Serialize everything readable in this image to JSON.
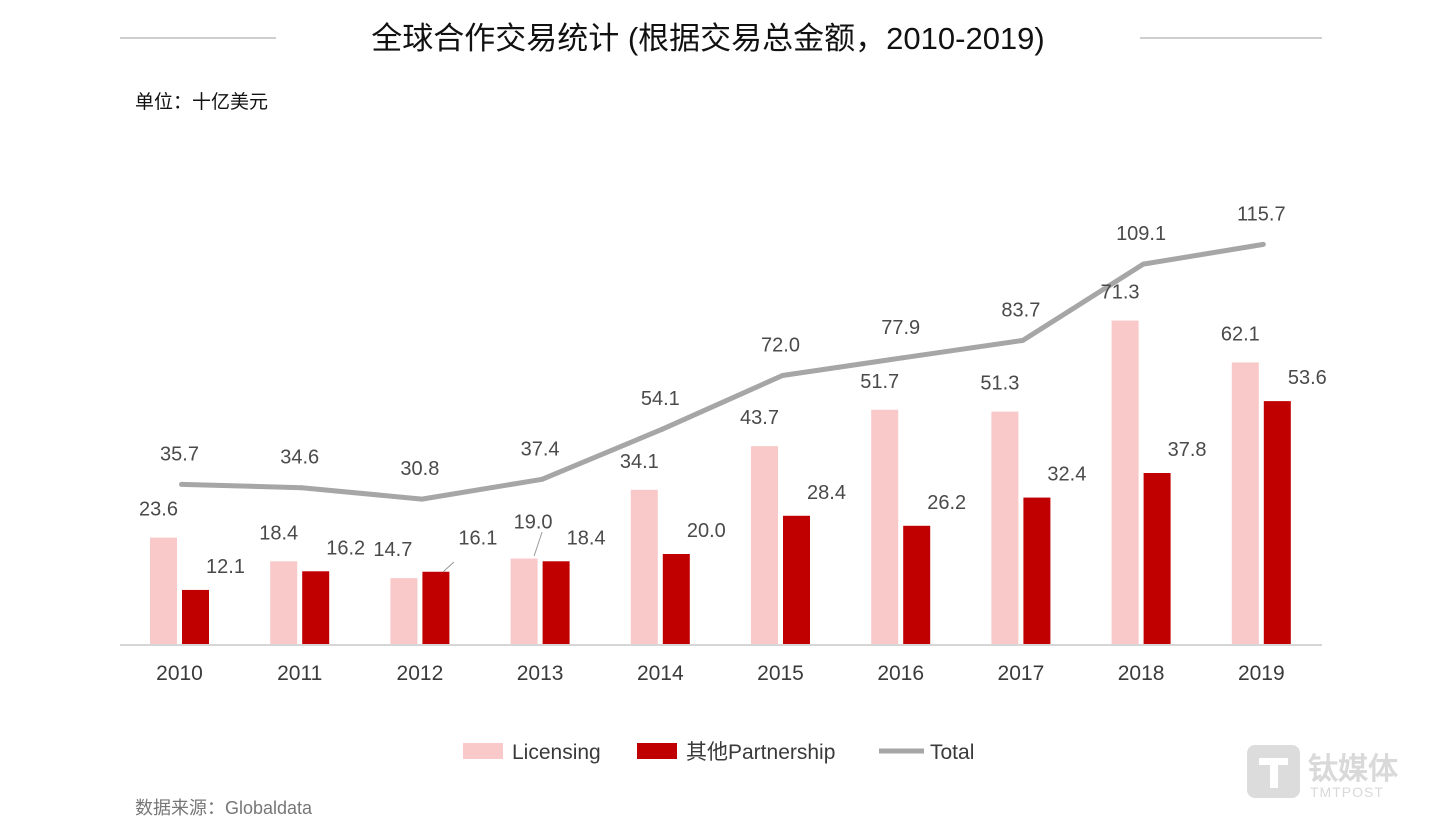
{
  "chart_data": {
    "type": "bar",
    "title": "全球合作交易统计 (根据交易总金额，2010-2019)",
    "unit_label": "单位：十亿美元",
    "categories": [
      "2010",
      "2011",
      "2012",
      "2013",
      "2014",
      "2015",
      "2016",
      "2017",
      "2018",
      "2019"
    ],
    "series": [
      {
        "name": "Licensing",
        "kind": "bar",
        "color": "#f9c9c9",
        "values": [
          23.6,
          18.4,
          14.7,
          19.0,
          34.1,
          43.7,
          51.7,
          51.3,
          71.3,
          62.1
        ],
        "labels": [
          "23.6",
          "18.4",
          "14.7",
          "19.0",
          "34.1",
          "43.7",
          "51.7",
          "51.3",
          "71.3",
          "62.1"
        ]
      },
      {
        "name": "其他Partnership",
        "kind": "bar",
        "color": "#c00000",
        "values": [
          12.1,
          16.2,
          16.1,
          18.4,
          20.0,
          28.4,
          26.2,
          32.4,
          37.8,
          53.6
        ],
        "labels": [
          "12.1",
          "16.2",
          "16.1",
          "18.4",
          "20.0",
          "28.4",
          "26.2",
          "32.4",
          "37.8",
          "53.6"
        ]
      },
      {
        "name": "Total",
        "kind": "line",
        "color": "#a6a6a6",
        "values": [
          35.7,
          34.6,
          30.8,
          37.4,
          54.1,
          72.0,
          77.9,
          83.7,
          109.1,
          115.7
        ],
        "labels": [
          "35.7",
          "34.6",
          "30.8",
          "37.4",
          "54.1",
          "72.0",
          "77.9",
          "83.7",
          "109.1",
          "115.7"
        ]
      }
    ],
    "legend_position": "bottom",
    "grid": false,
    "xlabel": "",
    "ylabel": ""
  },
  "source": "数据来源：Globaldata",
  "watermark": {
    "brand": "钛媒体",
    "sub": "TMTPOST",
    "icon": "tmtpost-logo-icon"
  }
}
